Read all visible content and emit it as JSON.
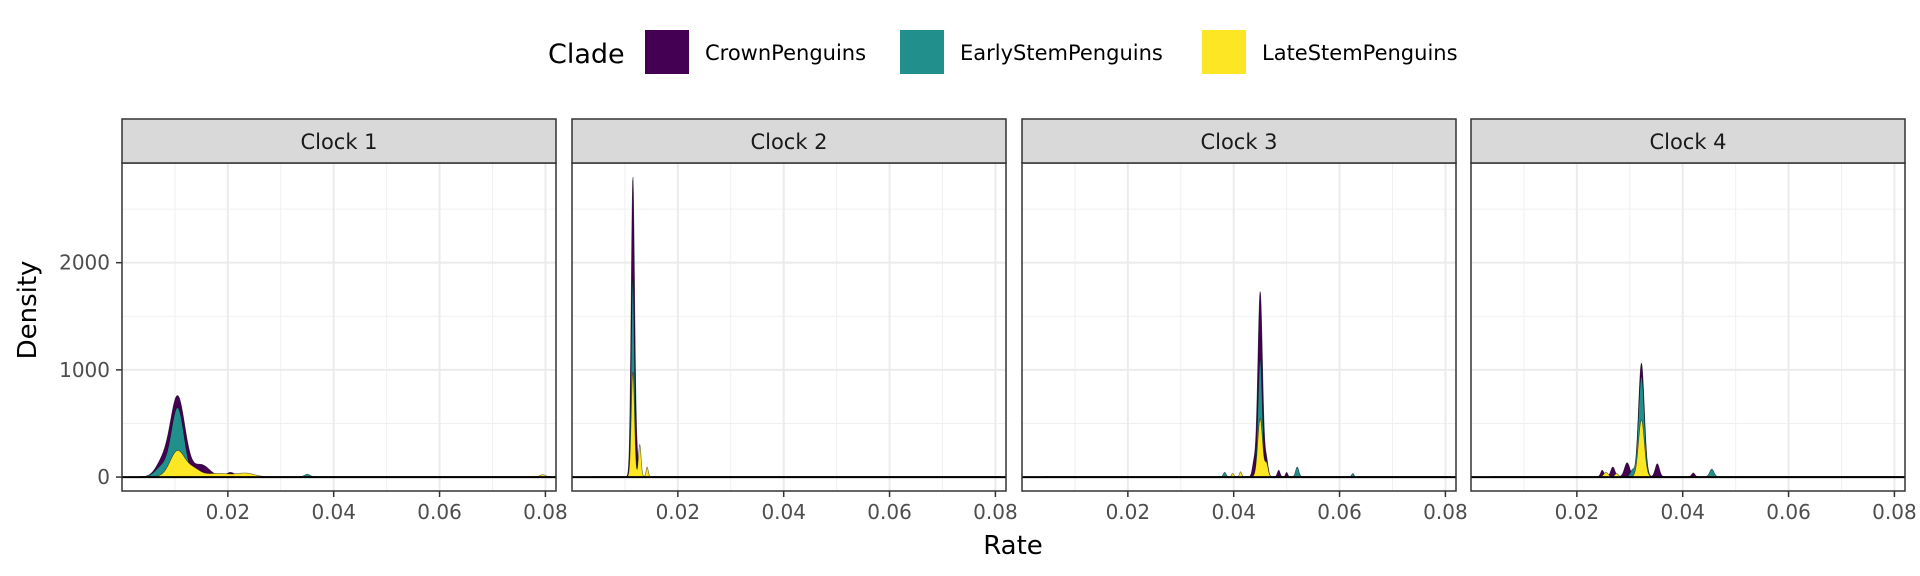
{
  "chart_data": {
    "type": "area",
    "xlabel": "Rate",
    "ylabel": "Density",
    "xlim": [
      0.0,
      0.082
    ],
    "ylim": [
      -130,
      2930
    ],
    "x_ticks": [
      0.02,
      0.04,
      0.06,
      0.08
    ],
    "x_tick_labels": [
      "0.02",
      "0.04",
      "0.06",
      "0.08"
    ],
    "y_ticks": [
      0,
      1000,
      2000
    ],
    "y_tick_labels": [
      "0",
      "1000",
      "2000"
    ],
    "grid": true,
    "legend": {
      "title": "Clade",
      "position": "top",
      "entries": [
        "CrownPenguins",
        "EarlyStemPenguins",
        "LateStemPenguins"
      ]
    },
    "colors": {
      "CrownPenguins": "#440154",
      "EarlyStemPenguins": "#21908c",
      "LateStemPenguins": "#fde725"
    },
    "panels": [
      {
        "title": "Clock 1",
        "series": [
          {
            "name": "CrownPenguins",
            "peaks": [
              {
                "x": 0.0105,
                "y": 750,
                "w": 0.0014
              },
              {
                "x": 0.0075,
                "y": 120,
                "w": 0.0012
              },
              {
                "x": 0.015,
                "y": 110,
                "w": 0.0015
              },
              {
                "x": 0.0205,
                "y": 40,
                "w": 0.0008
              }
            ],
            "range": [
              0.0035,
              0.081
            ]
          },
          {
            "name": "EarlyStemPenguins",
            "peaks": [
              {
                "x": 0.0105,
                "y": 640,
                "w": 0.0012
              },
              {
                "x": 0.0075,
                "y": 90,
                "w": 0.0012
              },
              {
                "x": 0.035,
                "y": 22,
                "w": 0.0005
              }
            ],
            "range": [
              0.0035,
              0.081
            ]
          },
          {
            "name": "LateStemPenguins",
            "peaks": [
              {
                "x": 0.0105,
                "y": 240,
                "w": 0.0014
              },
              {
                "x": 0.0135,
                "y": 60,
                "w": 0.0012
              },
              {
                "x": 0.018,
                "y": 30,
                "w": 0.003
              },
              {
                "x": 0.0235,
                "y": 28,
                "w": 0.0015
              },
              {
                "x": 0.0795,
                "y": 18,
                "w": 0.0005
              }
            ],
            "range": [
              0.0035,
              0.081
            ]
          }
        ]
      },
      {
        "title": "Clock 2",
        "series": [
          {
            "name": "CrownPenguins",
            "peaks": [
              {
                "x": 0.0115,
                "y": 2790,
                "w": 0.00032
              },
              {
                "x": 0.0122,
                "y": 220,
                "w": 0.0003
              }
            ],
            "range": [
              0.004,
              0.081
            ]
          },
          {
            "name": "EarlyStemPenguins",
            "peaks": [
              {
                "x": 0.0115,
                "y": 1860,
                "w": 0.0003
              }
            ],
            "range": [
              0.004,
              0.081
            ]
          },
          {
            "name": "LateStemPenguins",
            "peaks": [
              {
                "x": 0.0115,
                "y": 980,
                "w": 0.0003
              },
              {
                "x": 0.0128,
                "y": 300,
                "w": 0.00025
              },
              {
                "x": 0.0142,
                "y": 90,
                "w": 0.0002
              }
            ],
            "range": [
              0.004,
              0.081
            ]
          }
        ]
      },
      {
        "title": "Clock 3",
        "series": [
          {
            "name": "CrownPenguins",
            "peaks": [
              {
                "x": 0.045,
                "y": 1730,
                "w": 0.00045
              },
              {
                "x": 0.0438,
                "y": 120,
                "w": 0.0003
              },
              {
                "x": 0.0462,
                "y": 150,
                "w": 0.0003
              },
              {
                "x": 0.0485,
                "y": 60,
                "w": 0.00025
              },
              {
                "x": 0.05,
                "y": 40,
                "w": 0.0002
              }
            ],
            "range": [
              0.004,
              0.081
            ]
          },
          {
            "name": "EarlyStemPenguins",
            "peaks": [
              {
                "x": 0.045,
                "y": 1100,
                "w": 0.0004
              },
              {
                "x": 0.0383,
                "y": 40,
                "w": 0.00025
              },
              {
                "x": 0.052,
                "y": 90,
                "w": 0.0003
              },
              {
                "x": 0.0625,
                "y": 30,
                "w": 0.0002
              }
            ],
            "range": [
              0.004,
              0.081
            ]
          },
          {
            "name": "LateStemPenguins",
            "peaks": [
              {
                "x": 0.045,
                "y": 540,
                "w": 0.00045
              },
              {
                "x": 0.0462,
                "y": 120,
                "w": 0.0003
              },
              {
                "x": 0.0398,
                "y": 30,
                "w": 0.0002
              },
              {
                "x": 0.0413,
                "y": 45,
                "w": 0.0002
              }
            ],
            "range": [
              0.004,
              0.081
            ]
          }
        ]
      },
      {
        "title": "Clock 4",
        "series": [
          {
            "name": "CrownPenguins",
            "peaks": [
              {
                "x": 0.0322,
                "y": 1060,
                "w": 0.00055
              },
              {
                "x": 0.0268,
                "y": 90,
                "w": 0.0004
              },
              {
                "x": 0.0295,
                "y": 130,
                "w": 0.0005
              },
              {
                "x": 0.0352,
                "y": 120,
                "w": 0.0004
              },
              {
                "x": 0.042,
                "y": 35,
                "w": 0.0003
              },
              {
                "x": 0.0248,
                "y": 60,
                "w": 0.0003
              }
            ],
            "range": [
              0.004,
              0.081
            ]
          },
          {
            "name": "EarlyStemPenguins",
            "peaks": [
              {
                "x": 0.0322,
                "y": 940,
                "w": 0.00055
              },
              {
                "x": 0.0455,
                "y": 70,
                "w": 0.0004
              },
              {
                "x": 0.0305,
                "y": 60,
                "w": 0.0004
              }
            ],
            "range": [
              0.004,
              0.081
            ]
          },
          {
            "name": "LateStemPenguins",
            "peaks": [
              {
                "x": 0.0322,
                "y": 530,
                "w": 0.00055
              },
              {
                "x": 0.0255,
                "y": 40,
                "w": 0.0004
              },
              {
                "x": 0.0275,
                "y": 30,
                "w": 0.0003
              }
            ],
            "range": [
              0.004,
              0.081
            ]
          }
        ]
      }
    ]
  }
}
